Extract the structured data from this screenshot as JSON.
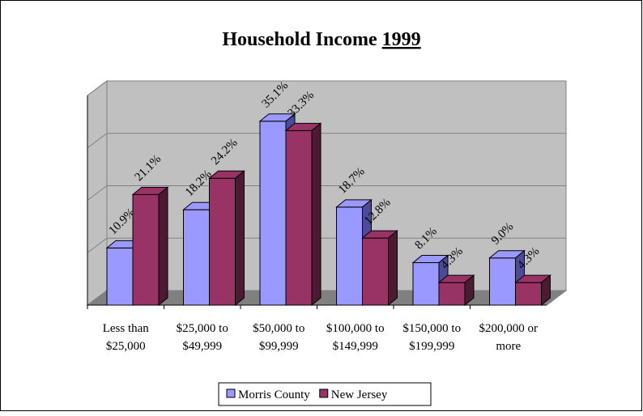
{
  "chart_data": {
    "type": "bar3d",
    "title": "Household Income",
    "title_underlined": "1999",
    "categories": [
      [
        "Less than",
        "$25,000"
      ],
      [
        "$25,000 to",
        "$49,999"
      ],
      [
        "$50,000 to",
        "$99,999"
      ],
      [
        "$100,000 to",
        "$149,999"
      ],
      [
        "$150,000 to",
        "$199,999"
      ],
      [
        "$200,000 or",
        "more"
      ]
    ],
    "series": [
      {
        "name": "Morris County",
        "color": "#9999ff",
        "side": "#4b4b9a",
        "values": [
          10.9,
          18.2,
          35.1,
          18.7,
          8.1,
          9.0
        ],
        "value_labels": [
          "10.9%",
          "18.2%",
          "35.1%",
          "18.7%",
          "8.1%",
          "9.0%"
        ]
      },
      {
        "name": "New Jersey",
        "color": "#993366",
        "side": "#4d1a33",
        "values": [
          21.1,
          24.2,
          33.3,
          12.8,
          4.3,
          4.3
        ],
        "value_labels": [
          "21.1%",
          "24.2%",
          "33.3%",
          "12.8%",
          "4.3%",
          "4.3%"
        ]
      }
    ],
    "ylim": [
      0,
      40
    ],
    "yticks": [
      0,
      10,
      20,
      30,
      40
    ],
    "grid": true,
    "legend": "bottom"
  }
}
